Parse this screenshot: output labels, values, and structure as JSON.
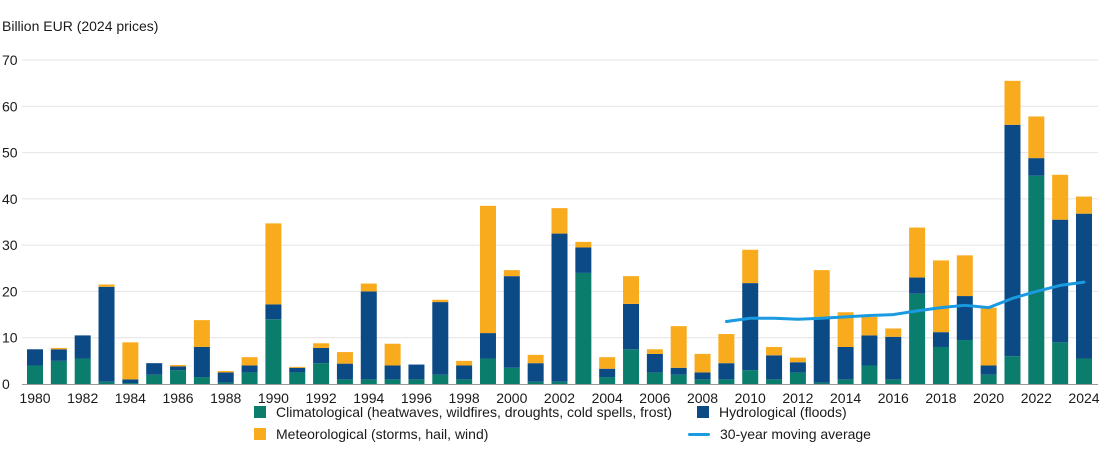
{
  "chart_data": {
    "type": "bar",
    "stacked": true,
    "ylabel": "Billion EUR (2024 prices)",
    "ylim": [
      0,
      70
    ],
    "yticks": [
      0,
      10,
      20,
      30,
      40,
      50,
      60,
      70
    ],
    "grid": true,
    "legend_position": "bottom",
    "x": [
      1980,
      1981,
      1982,
      1983,
      1984,
      1985,
      1986,
      1987,
      1988,
      1989,
      1990,
      1991,
      1992,
      1993,
      1994,
      1995,
      1996,
      1997,
      1998,
      1999,
      2000,
      2001,
      2002,
      2003,
      2004,
      2005,
      2006,
      2007,
      2008,
      2009,
      2010,
      2011,
      2012,
      2013,
      2014,
      2015,
      2016,
      2017,
      2018,
      2019,
      2020,
      2021,
      2022,
      2023,
      2024
    ],
    "xtick_labels": [
      "1980",
      "1982",
      "1984",
      "1986",
      "1988",
      "1990",
      "1992",
      "1994",
      "1996",
      "1998",
      "2000",
      "2002",
      "2004",
      "2006",
      "2008",
      "2010",
      "2012",
      "2014",
      "2016",
      "2018",
      "2020",
      "2022",
      "2024"
    ],
    "series": [
      {
        "name": "Climatological (heatwaves, wildfires, droughts, cold spells, frost)",
        "color": "#0b7d6c",
        "values": [
          4.0,
          5.0,
          5.5,
          0.5,
          0.2,
          2.0,
          3.0,
          1.5,
          0.3,
          2.5,
          14.0,
          2.5,
          4.5,
          1.0,
          1.0,
          1.0,
          1.0,
          2.0,
          1.0,
          5.5,
          3.5,
          0.5,
          0.5,
          24.0,
          1.5,
          7.5,
          2.5,
          2.0,
          1.0,
          1.0,
          3.0,
          1.0,
          2.5,
          0.3,
          1.0,
          4.0,
          1.0,
          19.5,
          8.0,
          9.5,
          2.0,
          6.0,
          45.0,
          9.0,
          5.5
        ]
      },
      {
        "name": "Hydrological (floods)",
        "color": "#0b4a85",
        "values": [
          3.5,
          2.5,
          5.0,
          20.5,
          0.8,
          2.5,
          0.8,
          6.5,
          2.2,
          1.5,
          3.2,
          1.0,
          3.3,
          3.4,
          19.0,
          3.0,
          3.2,
          15.7,
          3.0,
          5.5,
          19.8,
          4.0,
          32.0,
          5.5,
          1.8,
          9.8,
          4.0,
          1.5,
          1.5,
          3.5,
          18.8,
          5.2,
          2.2,
          14.0,
          7.0,
          6.5,
          9.2,
          3.5,
          3.2,
          9.5,
          2.0,
          50.0,
          3.8,
          26.5,
          31.3
        ]
      },
      {
        "name": "Meteorological (storms, hail, wind)",
        "color": "#f9ab1e",
        "values": [
          0.0,
          0.3,
          0.0,
          0.5,
          8.0,
          0.0,
          0.3,
          5.8,
          0.3,
          1.8,
          17.5,
          0.2,
          1.0,
          2.5,
          1.7,
          4.7,
          0.0,
          0.5,
          1.0,
          27.5,
          1.3,
          1.8,
          5.5,
          1.2,
          2.5,
          6.0,
          1.0,
          9.0,
          4.0,
          6.3,
          7.2,
          1.8,
          1.0,
          10.3,
          7.5,
          4.0,
          1.8,
          10.8,
          15.5,
          8.8,
          12.5,
          9.5,
          9.0,
          9.7,
          3.7
        ]
      }
    ],
    "line": {
      "name": "30-year moving average",
      "color": "#1a9ae0",
      "x": [
        2009,
        2010,
        2011,
        2012,
        2013,
        2014,
        2015,
        2016,
        2017,
        2018,
        2019,
        2020,
        2021,
        2022,
        2023,
        2024
      ],
      "values": [
        13.5,
        14.2,
        14.2,
        14.0,
        14.2,
        14.5,
        14.8,
        15.0,
        15.8,
        16.5,
        17.0,
        16.5,
        18.5,
        20.0,
        21.3,
        22.0
      ]
    }
  }
}
